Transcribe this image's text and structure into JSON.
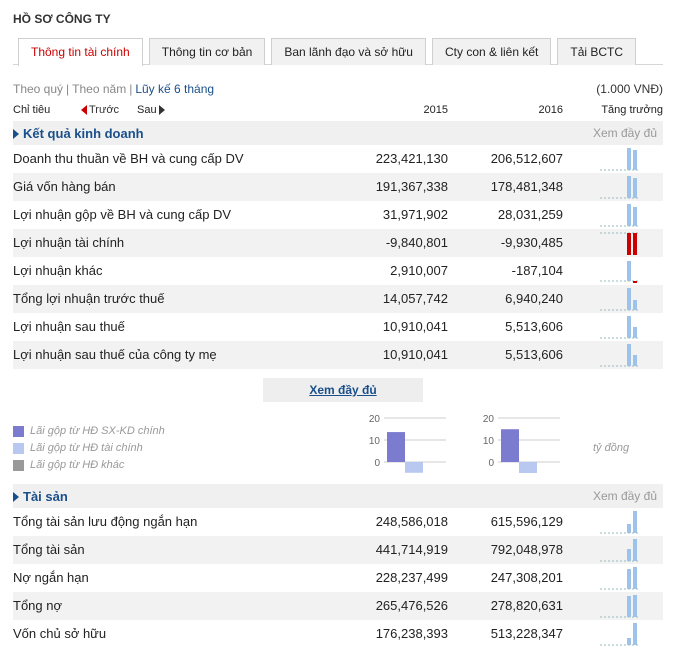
{
  "page_title": "HỒ SƠ CÔNG TY",
  "tabs": [
    {
      "label": "Thông tin tài chính",
      "active": true
    },
    {
      "label": "Thông tin cơ bản",
      "active": false
    },
    {
      "label": "Ban lãnh đạo và sở hữu",
      "active": false
    },
    {
      "label": "Cty con & liên kết",
      "active": false
    },
    {
      "label": "Tải BCTC",
      "active": false
    }
  ],
  "period": {
    "quarter": "Theo quý",
    "year": "Theo năm",
    "cumulative": "Lũy kế 6 tháng"
  },
  "unit": "(1.000 VNĐ)",
  "header": {
    "indicator": "Chỉ tiêu",
    "prev": "Trước",
    "next": "Sau",
    "col1": "2015",
    "col2": "2016",
    "growth": "Tăng trưởng"
  },
  "business": {
    "title": "Kết quả kinh doanh",
    "more": "Xem đầy đủ",
    "rows": [
      {
        "label": "Doanh thu thuần về BH và cung cấp DV",
        "v1": "223,421,130",
        "v2": "206,512,607"
      },
      {
        "label": "Giá vốn hàng bán",
        "v1": "191,367,338",
        "v2": "178,481,348"
      },
      {
        "label": "Lợi nhuận gộp về BH và cung cấp DV",
        "v1": "31,971,902",
        "v2": "28,031,259"
      },
      {
        "label": "Lợi nhuận tài chính",
        "v1": "-9,840,801",
        "v2": "-9,930,485"
      },
      {
        "label": "Lợi nhuận khác",
        "v1": "2,910,007",
        "v2": "-187,104"
      },
      {
        "label": "Tổng lợi nhuận trước thuế",
        "v1": "14,057,742",
        "v2": "6,940,240"
      },
      {
        "label": "Lợi nhuận sau thuế",
        "v1": "10,910,041",
        "v2": "5,513,606"
      },
      {
        "label": "Lợi nhuận sau thuế của công ty mẹ",
        "v1": "10,910,041",
        "v2": "5,513,606"
      }
    ]
  },
  "view_full": "Xem đầy đủ",
  "legend": [
    {
      "label": "Lãi gộp từ HĐ SX-KD chính",
      "color": "#7b7bd0"
    },
    {
      "label": "Lãi gộp từ HĐ tài chính",
      "color": "#b8c8f0"
    },
    {
      "label": "Lãi gộp từ HĐ khác",
      "color": "#999999"
    }
  ],
  "mini_chart_unit": "tỷ đồng",
  "mini_chart_axis": [
    "20",
    "10",
    "0"
  ],
  "assets": {
    "title": "Tài sản",
    "more": "Xem đầy đủ",
    "rows": [
      {
        "label": "Tổng tài sản lưu động ngắn hạn",
        "v1": "248,586,018",
        "v2": "615,596,129"
      },
      {
        "label": "Tổng tài sản",
        "v1": "441,714,919",
        "v2": "792,048,978"
      },
      {
        "label": "Nợ ngắn hạn",
        "v1": "228,237,499",
        "v2": "247,308,201"
      },
      {
        "label": "Tổng nợ",
        "v1": "265,476,526",
        "v2": "278,820,631"
      },
      {
        "label": "Vốn chủ sở hữu",
        "v1": "176,238,393",
        "v2": "513,228,347"
      }
    ]
  },
  "chart_data": [
    {
      "type": "bar",
      "categories": [
        "2015"
      ],
      "series": [
        {
          "values": [
            13.6
          ]
        },
        {
          "values": [
            -4.9
          ]
        }
      ]
    },
    {
      "type": "bar",
      "categories": [
        "2016"
      ],
      "series": [
        {
          "values": [
            14.9
          ]
        },
        {
          "values": [
            -5.0
          ]
        }
      ]
    }
  ]
}
